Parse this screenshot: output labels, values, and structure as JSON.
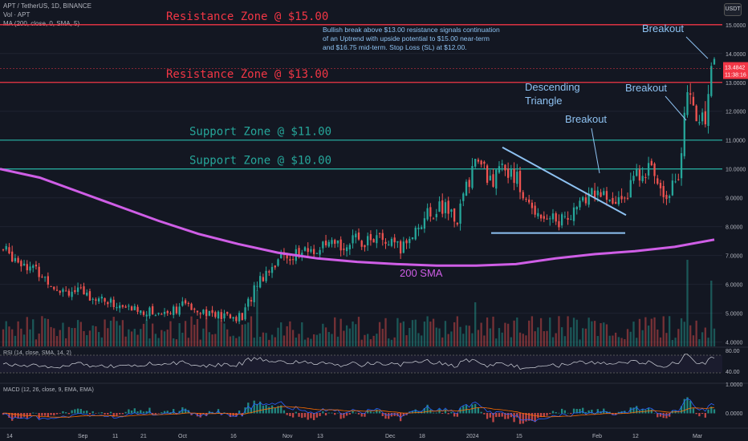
{
  "header": {
    "symbol_line": "APT / TetherUS, 1D, BINANCE",
    "vol_line": "Vol · APT",
    "ma_line": "MA (200, close, 0, SMA, 5)",
    "currency_badge": "USDT"
  },
  "colors": {
    "background": "#131722",
    "bull": "#26a69a",
    "bear": "#ef5350",
    "resistance": "#f23645",
    "support": "#26a69a",
    "sma": "#cf5ee6",
    "annotation": "#8ec2f2",
    "rsi_line": "#d1d4dc",
    "macd_line": "#2962ff",
    "signal_line": "#ff6d00"
  },
  "panels": {
    "rsi_label": "RSI (14, close, SMA, 14, 2)",
    "macd_label": "MACD (12, 26, close, 9, EMA, EMA)",
    "rsi_ticks": [
      "80.00",
      "40.00"
    ],
    "macd_ticks": [
      "1.0000",
      "0.0000"
    ]
  },
  "price_tag": {
    "price": "13.4842",
    "countdown": "11:38:16"
  },
  "chart_data": {
    "type": "candlestick",
    "y_axis_ticks": [
      "15.0000",
      "14.0000",
      "13.0000",
      "12.0000",
      "11.0000",
      "10.0000",
      "9.0000",
      "8.0000",
      "7.0000",
      "6.0000",
      "5.0000",
      "4.0000"
    ],
    "ylim": [
      3.85,
      15.3
    ],
    "x_axis_ticks": [
      "14",
      "Sep",
      "11",
      "21",
      "Oct",
      "16",
      "Nov",
      "13",
      "Dec",
      "18",
      "2024",
      "15",
      "Feb",
      "12",
      "Mar"
    ],
    "zones": [
      {
        "label": "Resistance Zone @ $15.00",
        "price": 15.0,
        "kind": "resistance"
      },
      {
        "label": "Resistance Zone @ $13.00",
        "price": 13.0,
        "kind": "resistance"
      },
      {
        "label": "Support Zone @ $11.00",
        "price": 11.0,
        "kind": "support"
      },
      {
        "label": "Support Zone @ $10.00",
        "price": 10.0,
        "kind": "support"
      }
    ],
    "annotations": {
      "commentary": [
        "Bullish break above $13.00 resistance signals continuation",
        "of an Uptrend with upside potential to $15.00 near-term",
        "and $16.75 mid-term. Stop Loss (SL) at $12.00."
      ],
      "pattern": [
        "Descending",
        "Triangle"
      ],
      "breakout": "Breakout",
      "sma_label": "200 SMA"
    },
    "sma_200": [
      10.0,
      9.7,
      9.2,
      8.7,
      8.2,
      7.75,
      7.4,
      7.1,
      6.9,
      6.78,
      6.7,
      6.65,
      6.65,
      6.7,
      6.9,
      7.05,
      7.15,
      7.3,
      7.55
    ],
    "close_anchors": [
      {
        "i": 0,
        "v": 7.2
      },
      {
        "i": 8,
        "v": 6.7
      },
      {
        "i": 18,
        "v": 5.9
      },
      {
        "i": 30,
        "v": 5.6
      },
      {
        "i": 40,
        "v": 5.2
      },
      {
        "i": 52,
        "v": 5.0
      },
      {
        "i": 62,
        "v": 5.3
      },
      {
        "i": 72,
        "v": 4.9
      },
      {
        "i": 80,
        "v": 4.85
      },
      {
        "i": 85,
        "v": 6.1
      },
      {
        "i": 92,
        "v": 6.9
      },
      {
        "i": 100,
        "v": 7.1
      },
      {
        "i": 110,
        "v": 7.3
      },
      {
        "i": 118,
        "v": 7.5
      },
      {
        "i": 125,
        "v": 7.6
      },
      {
        "i": 133,
        "v": 7.2
      },
      {
        "i": 140,
        "v": 8.2
      },
      {
        "i": 146,
        "v": 8.7
      },
      {
        "i": 152,
        "v": 8.3
      },
      {
        "i": 158,
        "v": 10.4
      },
      {
        "i": 163,
        "v": 9.6
      },
      {
        "i": 170,
        "v": 10.1
      },
      {
        "i": 175,
        "v": 8.8
      },
      {
        "i": 180,
        "v": 8.5
      },
      {
        "i": 186,
        "v": 8.2
      },
      {
        "i": 192,
        "v": 8.6
      },
      {
        "i": 198,
        "v": 9.3
      },
      {
        "i": 204,
        "v": 8.7
      },
      {
        "i": 210,
        "v": 9.4
      },
      {
        "i": 214,
        "v": 10.1
      },
      {
        "i": 218,
        "v": 9.8
      },
      {
        "i": 222,
        "v": 9.2
      },
      {
        "i": 226,
        "v": 9.8
      },
      {
        "i": 229,
        "v": 12.5
      },
      {
        "i": 232,
        "v": 11.8
      },
      {
        "i": 235,
        "v": 11.9
      },
      {
        "i": 237,
        "v": 13.5
      },
      {
        "i": 238,
        "v": 13.48
      }
    ],
    "candle_count": 239
  }
}
